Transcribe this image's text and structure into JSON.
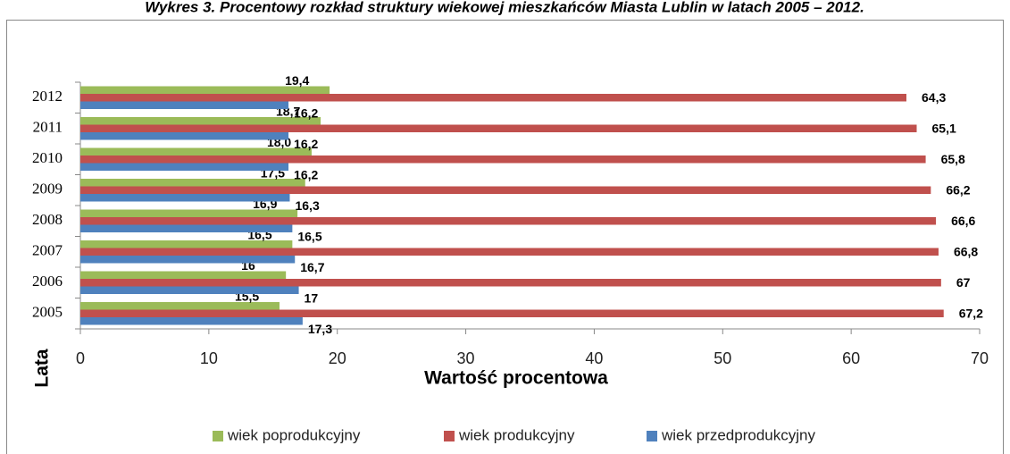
{
  "chart_data": {
    "type": "barh",
    "title": "Wykres 3. Procentowy rozkład struktury wiekowej mieszkańców Miasta Lublin w latach 2005 – 2012.",
    "x_label": "Wartość procentowa",
    "y_label": "Lata",
    "categories": [
      "2005",
      "2006",
      "2007",
      "2008",
      "2009",
      "2010",
      "2011",
      "2012"
    ],
    "series": [
      {
        "name": "wiek poprodukcyjny",
        "color": "#9bbb59",
        "values": [
          15.5,
          16,
          16.5,
          16.9,
          17.5,
          18.0,
          18.7,
          19.4
        ],
        "value_labels": [
          "15,5",
          "16",
          "16,5",
          "16,9",
          "17,5",
          "18,0",
          "18,7",
          "19,4"
        ]
      },
      {
        "name": "wiek produkcyjny",
        "color": "#c0504d",
        "values": [
          67.2,
          67,
          66.8,
          66.6,
          66.2,
          65.8,
          65.1,
          64.3
        ],
        "value_labels": [
          "67,2",
          "67",
          "66,8",
          "66,6",
          "66,2",
          "65,8",
          "65,1",
          "64,3"
        ]
      },
      {
        "name": "wiek przedprodukcyjny",
        "color": "#4f81bd",
        "values": [
          17.3,
          17,
          16.7,
          16.5,
          16.3,
          16.2,
          16.2,
          16.2
        ],
        "value_labels": [
          "17,3",
          "17",
          "16,7",
          "16,5",
          "16,3",
          "16,2",
          "16,2",
          "16,2"
        ]
      }
    ],
    "xlim": [
      0,
      70
    ],
    "xticks": [
      0,
      10,
      20,
      30,
      40,
      50,
      60,
      70
    ],
    "legend": "bottom"
  }
}
